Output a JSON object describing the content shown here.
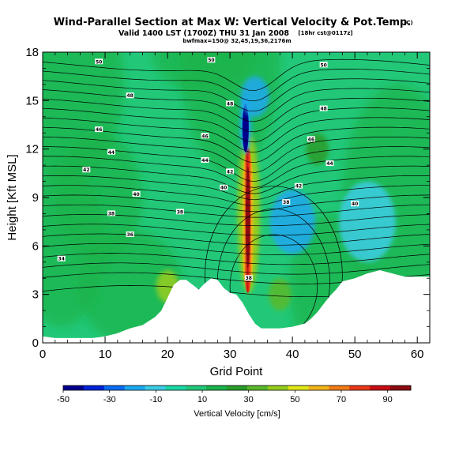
{
  "header": {
    "title": "Wind-Parallel Section at Max W: Vertical Velocity & Pot.Temp.",
    "title_unit": "(C)",
    "valid_line": "Valid 1400 LST (1700Z) THU 31 Jan 2008",
    "valid_run": "[18hr cst@0117z]",
    "bw_line": "bwfmax=150@ 32,45,19,36,2176m"
  },
  "chart_data": {
    "type": "heatmap",
    "title": "Wind-Parallel Section at Max W: Vertical Velocity & Pot.Temp.",
    "xlabel": "Grid Point",
    "ylabel": "Height [Kft MSL]",
    "xlim": [
      0,
      62
    ],
    "ylim": [
      0,
      18
    ],
    "xticks": [
      0,
      10,
      20,
      30,
      40,
      50,
      60
    ],
    "yticks": [
      0,
      3,
      6,
      9,
      12,
      15,
      18
    ],
    "colorbar": {
      "label": "Vertical Velocity [cm/s]",
      "min": -50,
      "max": 100,
      "ticks": [
        -50,
        -30,
        -10,
        10,
        30,
        50,
        70,
        90
      ],
      "colors": [
        "#00008c",
        "#0022d8",
        "#0a6cf2",
        "#1ca8f0",
        "#3ccce6",
        "#1ad8a6",
        "#22c878",
        "#1ab24a",
        "#2a9c2a",
        "#5ab82c",
        "#96cc1e",
        "#e0e61a",
        "#f2b41a",
        "#f07c18",
        "#e83818",
        "#c80e14",
        "#8c0a10"
      ]
    },
    "terrain_profile": {
      "x": [
        0,
        2,
        4,
        6,
        8,
        10,
        12,
        14,
        16,
        18,
        19,
        20,
        21,
        22,
        23,
        25,
        26,
        27,
        28,
        29,
        30,
        31,
        32,
        33,
        34,
        35,
        36,
        38,
        40,
        42,
        43,
        44,
        45,
        46,
        47,
        48,
        50,
        52,
        54,
        56,
        58,
        60,
        62
      ],
      "height_kft": [
        0.4,
        0.3,
        0.3,
        0.3,
        0.3,
        0.4,
        0.6,
        0.9,
        1.1,
        1.6,
        2.0,
        2.8,
        3.6,
        3.9,
        3.9,
        3.3,
        3.7,
        4.0,
        3.9,
        3.4,
        3.1,
        3.0,
        2.5,
        1.8,
        1.2,
        0.9,
        0.9,
        0.9,
        1.0,
        1.2,
        1.5,
        1.9,
        2.4,
        2.9,
        3.3,
        3.8,
        4.0,
        4.3,
        4.5,
        4.3,
        4.1,
        4.1,
        4.1
      ]
    },
    "velocity_features": [
      {
        "x": 33,
        "y_bottom": 4,
        "y_top": 13,
        "peak_cm_s": 100
      },
      {
        "x": 32.5,
        "y_bottom": 12,
        "y_top": 15,
        "peak_cm_s": -45
      },
      {
        "x": 34,
        "y_bottom": 14,
        "y_top": 16.5,
        "peak_cm_s": -15
      },
      {
        "x": 40,
        "y_bottom": 5.5,
        "y_top": 9.5,
        "peak_cm_s": -15
      },
      {
        "x": 52,
        "y_bottom": 5,
        "y_top": 10,
        "peak_cm_s": -10
      },
      {
        "x": 20,
        "y_bottom": 2.5,
        "y_top": 4.5,
        "peak_cm_s": 45
      },
      {
        "x": 44,
        "y_bottom": 11,
        "y_top": 13,
        "peak_cm_s": 25
      },
      {
        "x": 38,
        "y_bottom": 2,
        "y_top": 4,
        "peak_cm_s": 35
      }
    ],
    "isentropes_C": [
      34,
      36,
      38,
      40,
      42,
      44,
      46,
      48,
      50
    ],
    "contour_labels": [
      "50",
      "50",
      "50",
      "48",
      "48",
      "48",
      "46",
      "46",
      "46",
      "44",
      "44",
      "44",
      "42",
      "42",
      "42",
      "40",
      "40",
      "40",
      "38",
      "38",
      "36",
      "34",
      "38",
      "38"
    ]
  }
}
